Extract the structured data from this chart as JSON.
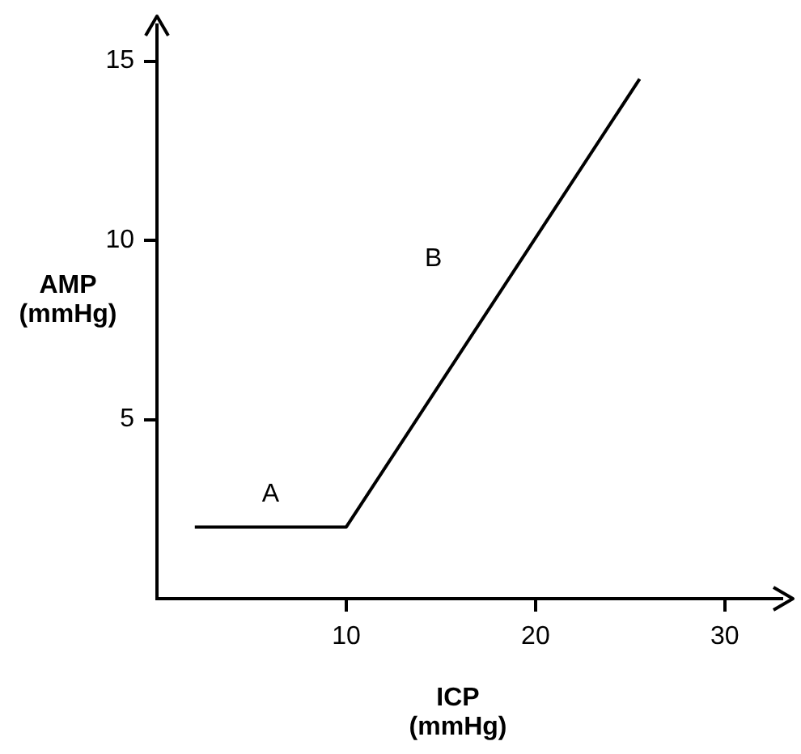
{
  "chart_data": {
    "type": "line",
    "xlabel": "ICP (mmHg)",
    "ylabel": "AMP (mmHg)",
    "x": [
      2,
      10,
      25.5
    ],
    "values": [
      2,
      2,
      14.5
    ],
    "color": "#000000",
    "xlim": [
      0,
      33
    ],
    "ylim": [
      0,
      16
    ],
    "xticks": [
      10,
      20,
      30
    ],
    "yticks": [
      5,
      10,
      15
    ],
    "grid": false,
    "legend": false,
    "marker": "none",
    "line_style": "solid",
    "annotations": [
      "A",
      "B"
    ]
  }
}
